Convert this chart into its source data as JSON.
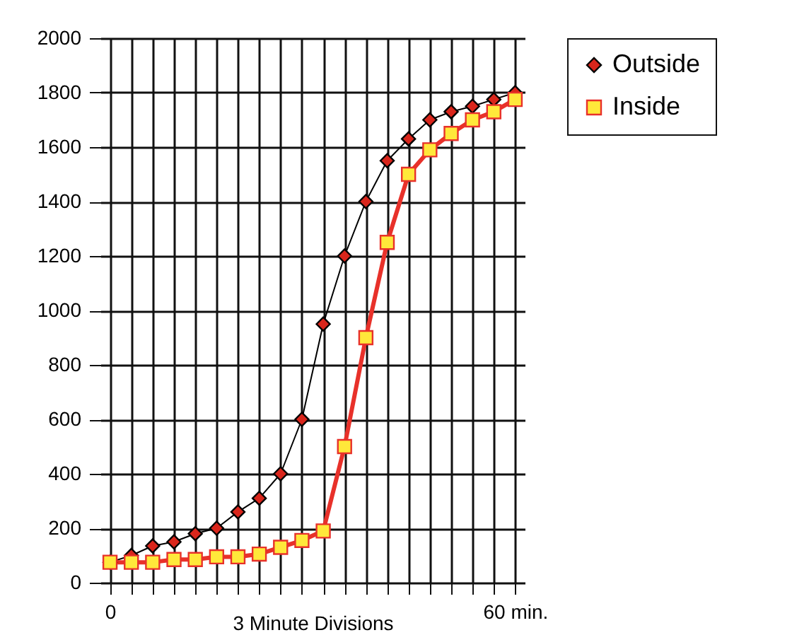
{
  "chart_data": {
    "type": "line",
    "xlabel": "3 Minute Divisions",
    "categories": [
      "0",
      null,
      null,
      null,
      null,
      null,
      null,
      null,
      null,
      null,
      null,
      null,
      null,
      null,
      null,
      null,
      null,
      null,
      null,
      "60 min."
    ],
    "series": [
      {
        "name": "Outside",
        "color": "#000000",
        "marker": "diamond",
        "values": [
          75,
          100,
          135,
          150,
          180,
          200,
          260,
          310,
          400,
          600,
          950,
          1200,
          1400,
          1550,
          1630,
          1700,
          1730,
          1750,
          1775,
          1800
        ]
      },
      {
        "name": "Inside",
        "color": "#e8312a",
        "marker": "square",
        "values": [
          75,
          75,
          75,
          85,
          85,
          95,
          95,
          105,
          130,
          155,
          190,
          500,
          900,
          1250,
          1500,
          1590,
          1650,
          1700,
          1730,
          1775
        ]
      }
    ],
    "ylim": [
      0,
      2000
    ],
    "yticks": [
      0,
      200,
      400,
      600,
      800,
      1000,
      1200,
      1400,
      1600,
      1800,
      2000
    ],
    "grid": true,
    "legend": "right"
  }
}
